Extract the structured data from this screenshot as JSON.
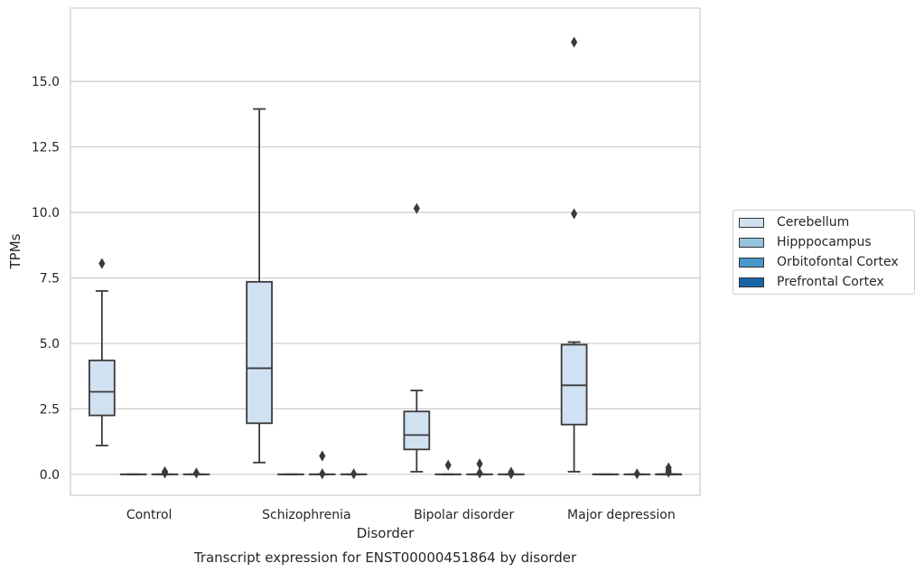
{
  "chart_data": {
    "type": "box",
    "title": "Transcript expression for ENST00000451864 by disorder",
    "xlabel": "Disorder",
    "ylabel": "TPMs",
    "ylim": [
      -0.8,
      17.8
    ],
    "yticks": [
      "0.0",
      "2.5",
      "5.0",
      "7.5",
      "10.0",
      "12.5",
      "15.0"
    ],
    "ytick_values": [
      0,
      2.5,
      5,
      7.5,
      10,
      12.5,
      15
    ],
    "categories": [
      "Control",
      "Schizophrenia",
      "Bipolar disorder",
      "Major depression"
    ],
    "grid": "horizontal",
    "legend_position": "right",
    "series": [
      {
        "name": "Cerebellum",
        "color": "#d0e1f2",
        "boxes": [
          {
            "category": "Control",
            "whisker_low": 1.1,
            "q1": 2.25,
            "median": 3.15,
            "q3": 4.35,
            "whisker_high": 7.0,
            "outliers": [
              8.05
            ]
          },
          {
            "category": "Schizophrenia",
            "whisker_low": 0.45,
            "q1": 1.95,
            "median": 4.05,
            "q3": 7.35,
            "whisker_high": 13.95,
            "outliers": []
          },
          {
            "category": "Bipolar disorder",
            "whisker_low": 0.1,
            "q1": 0.95,
            "median": 1.5,
            "q3": 2.4,
            "whisker_high": 3.2,
            "outliers": [
              10.15
            ]
          },
          {
            "category": "Major depression",
            "whisker_low": 0.1,
            "q1": 1.9,
            "median": 3.4,
            "q3": 4.95,
            "whisker_high": 5.05,
            "outliers": [
              9.95,
              16.5
            ]
          }
        ]
      },
      {
        "name": "Hipppocampus",
        "color": "#94c4df",
        "boxes": [
          {
            "category": "Control",
            "whisker_low": 0,
            "q1": 0,
            "median": 0,
            "q3": 0,
            "whisker_high": 0,
            "outliers": []
          },
          {
            "category": "Schizophrenia",
            "whisker_low": 0,
            "q1": 0,
            "median": 0,
            "q3": 0,
            "whisker_high": 0,
            "outliers": []
          },
          {
            "category": "Bipolar disorder",
            "whisker_low": 0,
            "q1": 0,
            "median": 0,
            "q3": 0,
            "whisker_high": 0,
            "outliers": [
              0.35
            ]
          },
          {
            "category": "Major depression",
            "whisker_low": 0,
            "q1": 0,
            "median": 0,
            "q3": 0,
            "whisker_high": 0,
            "outliers": []
          }
        ]
      },
      {
        "name": "Orbitofontal Cortex",
        "color": "#4a98c9",
        "boxes": [
          {
            "category": "Control",
            "whisker_low": 0,
            "q1": 0,
            "median": 0,
            "q3": 0,
            "whisker_high": 0,
            "outliers": [
              0.1,
              0.05
            ]
          },
          {
            "category": "Schizophrenia",
            "whisker_low": 0,
            "q1": 0,
            "median": 0,
            "q3": 0,
            "whisker_high": 0,
            "outliers": [
              0.7,
              0.02
            ]
          },
          {
            "category": "Bipolar disorder",
            "whisker_low": 0,
            "q1": 0,
            "median": 0,
            "q3": 0,
            "whisker_high": 0,
            "outliers": [
              0.4,
              0.05
            ]
          },
          {
            "category": "Major depression",
            "whisker_low": 0,
            "q1": 0,
            "median": 0,
            "q3": 0,
            "whisker_high": 0,
            "outliers": [
              0.02
            ]
          }
        ]
      },
      {
        "name": "Prefrontal Cortex",
        "color": "#1764ab",
        "boxes": [
          {
            "category": "Control",
            "whisker_low": 0,
            "q1": 0,
            "median": 0,
            "q3": 0,
            "whisker_high": 0,
            "outliers": [
              0.05
            ]
          },
          {
            "category": "Schizophrenia",
            "whisker_low": 0,
            "q1": 0,
            "median": 0,
            "q3": 0,
            "whisker_high": 0,
            "outliers": [
              0.02
            ]
          },
          {
            "category": "Bipolar disorder",
            "whisker_low": 0,
            "q1": 0,
            "median": 0,
            "q3": 0,
            "whisker_high": 0,
            "outliers": [
              0.08,
              0.02
            ]
          },
          {
            "category": "Major depression",
            "whisker_low": 0,
            "q1": 0,
            "median": 0,
            "q3": 0,
            "whisker_high": 0,
            "outliers": [
              0.25,
              0.15
            ]
          }
        ]
      },
      {
        "name": "",
        "color": "#1764ab",
        "boxes": [
          {
            "category": "Major depression",
            "whisker_low": 0,
            "q1": 0,
            "median": 0,
            "q3": 0,
            "whisker_high": 0,
            "outliers": [
              0.08
            ]
          }
        ]
      }
    ]
  }
}
